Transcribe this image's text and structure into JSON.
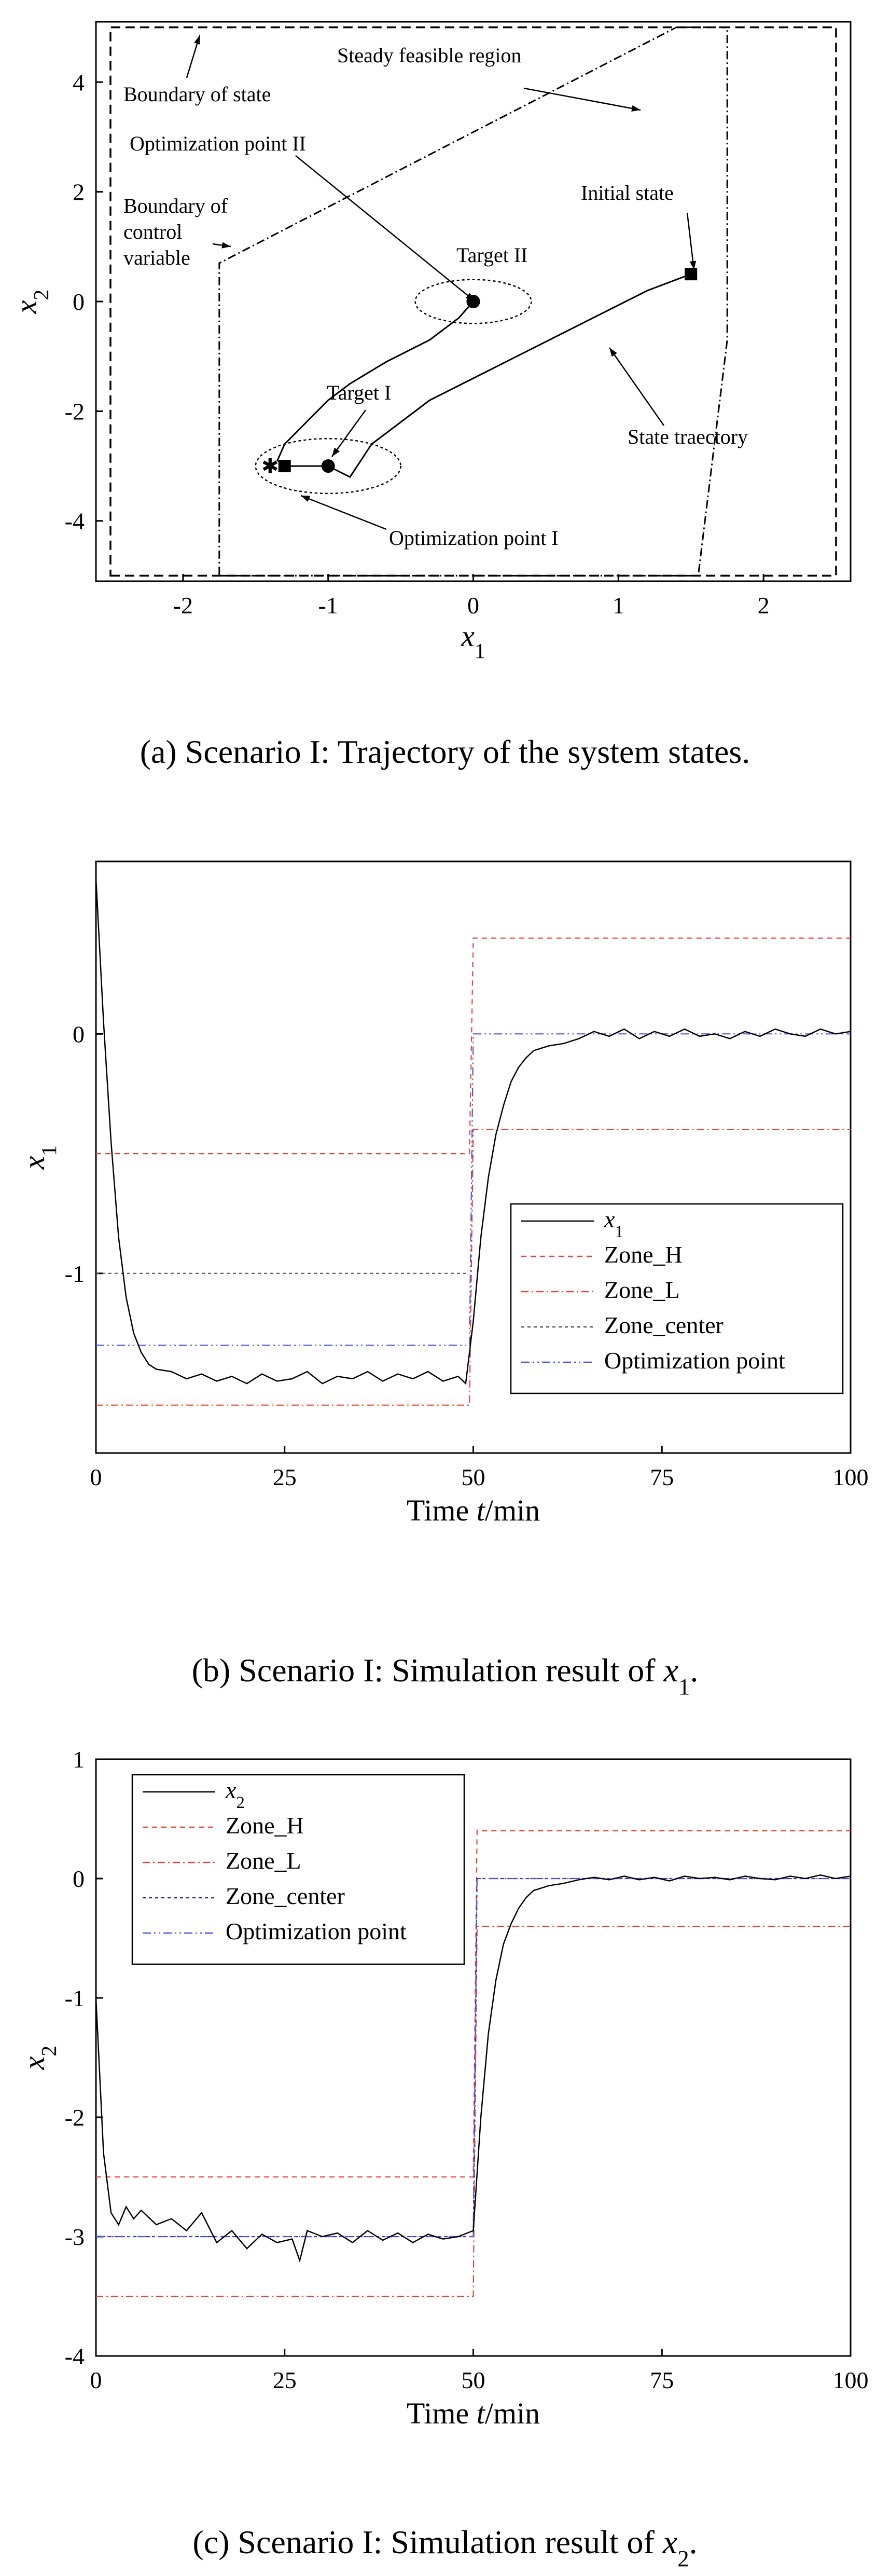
{
  "chart_data": [
    {
      "type": "scatter",
      "panel": "a",
      "caption": "(a) Scenario I: Trajectory of the system states.",
      "xlabel": "x1",
      "ylabel": "x2",
      "xlim": [
        -2.6,
        2.6
      ],
      "ylim": [
        -5.1,
        5.1
      ],
      "xticks": [
        -2,
        -1,
        0,
        1,
        2
      ],
      "yticks": [
        -4,
        -2,
        0,
        2,
        4
      ],
      "regions": {
        "boundary_of_state": [
          [
            -2.5,
            -5.0
          ],
          [
            2.5,
            -5.0
          ],
          [
            2.5,
            5.0
          ],
          [
            -2.5,
            5.0
          ]
        ],
        "boundary_of_control_variable": [
          [
            -1.75,
            -5.0
          ],
          [
            1.55,
            -5.0
          ],
          [
            1.75,
            -0.7
          ],
          [
            1.75,
            5.0
          ],
          [
            1.4,
            5.0
          ],
          [
            -1.75,
            0.7
          ]
        ],
        "target_I_ellipse": {
          "center": [
            -1.0,
            -3.0
          ],
          "rx": 0.5,
          "ry": 0.5
        },
        "target_II_ellipse": {
          "center": [
            0.0,
            0.0
          ],
          "rx": 0.4,
          "ry": 0.4
        }
      },
      "trajectory": [
        [
          1.5,
          0.5
        ],
        [
          1.2,
          0.2
        ],
        [
          0.9,
          -0.2
        ],
        [
          0.6,
          -0.6
        ],
        [
          0.3,
          -1.0
        ],
        [
          0.0,
          -1.4
        ],
        [
          -0.3,
          -1.8
        ],
        [
          -0.5,
          -2.2
        ],
        [
          -0.7,
          -2.6
        ],
        [
          -0.8,
          -3.0
        ],
        [
          -0.85,
          -3.2
        ],
        [
          -1.0,
          -3.0
        ],
        [
          -1.3,
          -3.0
        ],
        [
          -1.35,
          -2.9
        ],
        [
          -1.3,
          -2.6
        ],
        [
          -1.15,
          -2.2
        ],
        [
          -1.0,
          -1.8
        ],
        [
          -0.85,
          -1.5
        ],
        [
          -0.6,
          -1.1
        ],
        [
          -0.3,
          -0.7
        ],
        [
          -0.1,
          -0.3
        ],
        [
          0.0,
          0.0
        ]
      ],
      "points": [
        {
          "name": "Initial state",
          "x": 1.5,
          "y": 0.5,
          "marker": "square"
        },
        {
          "name": "Optimization point I",
          "x": -1.3,
          "y": -3.0,
          "marker": "square"
        },
        {
          "name": "Target I",
          "x": -1.0,
          "y": -3.0,
          "marker": "circle"
        },
        {
          "name": "Target II",
          "x": 0.0,
          "y": 0.0,
          "marker": "circle"
        },
        {
          "name": "Optimization point II",
          "x": 0.0,
          "y": 0.0,
          "marker": "circle"
        },
        {
          "name": "Start of loop",
          "x": -1.4,
          "y": -3.0,
          "marker": "star"
        }
      ],
      "annotations": {
        "boundary_of_state": "Boundary of state",
        "steady_feasible_region": "Steady feasible region",
        "optimization_point_II": "Optimization point II",
        "boundary_of_control_l1": "Boundary of",
        "boundary_of_control_l2": "control",
        "boundary_of_control_l3": "variable",
        "initial_state": "Initial state",
        "target_II": "Target II",
        "target_I": "Target I",
        "state_trajectory": "State traectory",
        "optimization_point_I": "Optimization point I"
      }
    },
    {
      "type": "line",
      "panel": "b",
      "caption": "(b) Scenario I: Simulation result of x1.",
      "xlabel": "Time t/min",
      "ylabel": "x1",
      "xlim": [
        0,
        100
      ],
      "ylim": [
        -1.75,
        0.72
      ],
      "xticks": [
        0,
        25,
        50,
        75,
        100
      ],
      "yticks": [
        -1,
        0
      ],
      "series": [
        {
          "name": "x1",
          "color": "#000000",
          "x": [
            0,
            1,
            2,
            3,
            4,
            5,
            6,
            7,
            8,
            10,
            12,
            14,
            16,
            18,
            20,
            22,
            24,
            26,
            28,
            30,
            32,
            34,
            36,
            38,
            40,
            42,
            44,
            46,
            48,
            49,
            50,
            51,
            52,
            53,
            54,
            55,
            56,
            57,
            58,
            60,
            62,
            64,
            66,
            68,
            70,
            72,
            74,
            76,
            78,
            80,
            82,
            84,
            86,
            88,
            90,
            92,
            94,
            96,
            98,
            100
          ],
          "values": [
            0.65,
            0.05,
            -0.45,
            -0.85,
            -1.1,
            -1.25,
            -1.33,
            -1.38,
            -1.4,
            -1.41,
            -1.44,
            -1.42,
            -1.45,
            -1.43,
            -1.46,
            -1.42,
            -1.45,
            -1.44,
            -1.41,
            -1.46,
            -1.43,
            -1.44,
            -1.41,
            -1.45,
            -1.42,
            -1.44,
            -1.41,
            -1.45,
            -1.43,
            -1.46,
            -1.2,
            -0.85,
            -0.6,
            -0.42,
            -0.3,
            -0.2,
            -0.14,
            -0.1,
            -0.07,
            -0.05,
            -0.04,
            -0.02,
            0.01,
            -0.01,
            0.02,
            -0.02,
            0.01,
            -0.01,
            0.02,
            -0.01,
            0.0,
            -0.02,
            0.01,
            -0.01,
            0.02,
            0.0,
            -0.01,
            0.02,
            0.0,
            0.01
          ]
        },
        {
          "name": "Zone_H",
          "color": "#e8433a",
          "x": [
            0,
            49.5,
            50,
            100
          ],
          "values": [
            -0.5,
            -0.5,
            0.4,
            0.4
          ]
        },
        {
          "name": "Zone_L",
          "color": "#e8433a",
          "x": [
            0,
            49.5,
            50,
            100
          ],
          "values": [
            -1.55,
            -1.55,
            -0.4,
            -0.4
          ]
        },
        {
          "name": "Zone_center",
          "color": "#555555",
          "x": [
            0,
            49.5
          ],
          "values": [
            -1.0,
            -1.0
          ]
        },
        {
          "name": "Optimization point",
          "color": "#4a55e8",
          "x": [
            0,
            49.5,
            50,
            100
          ],
          "values": [
            -1.3,
            -1.3,
            0.0,
            0.0
          ]
        }
      ],
      "legend": {
        "entries": [
          "x1",
          "Zone_H",
          "Zone_L",
          "Zone_center",
          "Optimization point"
        ],
        "placement": "center-right"
      }
    },
    {
      "type": "line",
      "panel": "c",
      "caption": "(c) Scenario I: Simulation result of x2.",
      "xlabel": "Time t/min",
      "ylabel": "x2",
      "xlim": [
        0,
        100
      ],
      "ylim": [
        -4,
        1
      ],
      "xticks": [
        0,
        25,
        50,
        75,
        100
      ],
      "yticks": [
        -4,
        -3,
        -2,
        -1,
        0,
        1
      ],
      "series": [
        {
          "name": "x2",
          "color": "#000000",
          "x": [
            0,
            1,
            2,
            3,
            4,
            5,
            6,
            8,
            10,
            12,
            14,
            16,
            18,
            20,
            22,
            24,
            26,
            27,
            28,
            30,
            32,
            34,
            36,
            38,
            40,
            42,
            44,
            46,
            48,
            50,
            51,
            52,
            53,
            54,
            55,
            56,
            57,
            58,
            60,
            62,
            64,
            66,
            68,
            70,
            72,
            74,
            76,
            78,
            80,
            82,
            84,
            86,
            88,
            90,
            92,
            94,
            96,
            98,
            100
          ],
          "values": [
            -1.0,
            -2.3,
            -2.8,
            -2.9,
            -2.75,
            -2.85,
            -2.78,
            -2.9,
            -2.85,
            -2.95,
            -2.8,
            -3.05,
            -2.95,
            -3.1,
            -2.98,
            -3.05,
            -3.02,
            -3.2,
            -2.95,
            -3.0,
            -2.97,
            -3.05,
            -2.95,
            -3.03,
            -2.97,
            -3.05,
            -2.98,
            -3.02,
            -3.0,
            -2.95,
            -2.0,
            -1.3,
            -0.85,
            -0.55,
            -0.38,
            -0.25,
            -0.16,
            -0.1,
            -0.06,
            -0.04,
            -0.01,
            0.01,
            -0.01,
            0.02,
            -0.01,
            0.01,
            -0.02,
            0.02,
            0.0,
            0.01,
            -0.01,
            0.02,
            0.0,
            -0.01,
            0.02,
            0.0,
            0.03,
            0.0,
            0.02
          ]
        },
        {
          "name": "Zone_H",
          "color": "#e8433a",
          "x": [
            0,
            50,
            50.5,
            100
          ],
          "values": [
            -2.5,
            -2.5,
            0.4,
            0.4
          ]
        },
        {
          "name": "Zone_L",
          "color": "#e8433a",
          "x": [
            0,
            50,
            50.5,
            100
          ],
          "values": [
            -3.5,
            -3.5,
            -0.4,
            -0.4
          ]
        },
        {
          "name": "Zone_center",
          "color": "#333399",
          "x": [
            0,
            50,
            50.5,
            100
          ],
          "values": [
            -3.0,
            -3.0,
            0.0,
            0.0
          ]
        },
        {
          "name": "Optimization point",
          "color": "#4a55e8",
          "x": [
            0,
            50,
            50.5,
            100
          ],
          "values": [
            -3.0,
            -3.0,
            0.0,
            0.0
          ]
        }
      ],
      "legend": {
        "entries": [
          "x2",
          "Zone_H",
          "Zone_L",
          "Zone_center",
          "Optimization point"
        ],
        "placement": "top-left"
      }
    }
  ]
}
